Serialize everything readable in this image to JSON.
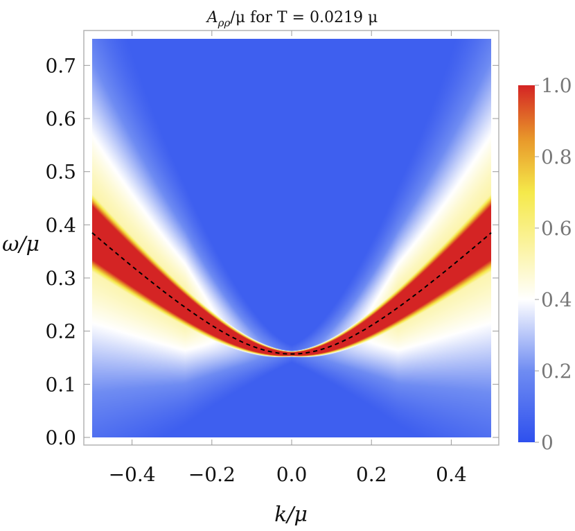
{
  "chart_data": {
    "type": "heatmap",
    "title": "A_ρρ/μ for T = 0.0219 μ",
    "title_parts": {
      "symbol": "A",
      "subscript": "ρρ",
      "rest": "/μ for T = 0.0219 μ"
    },
    "xlabel": "k/μ",
    "ylabel": "ω/μ",
    "xlim": [
      -0.5,
      0.5
    ],
    "ylim": [
      0.0,
      0.75
    ],
    "xticks": [
      -0.4,
      -0.2,
      0.0,
      0.2,
      0.4
    ],
    "xtick_labels": [
      "−0.4",
      "−0.2",
      "0.0",
      "0.2",
      "0.4"
    ],
    "yticks": [
      0.0,
      0.1,
      0.2,
      0.3,
      0.4,
      0.5,
      0.6,
      0.7
    ],
    "ytick_labels": [
      "0.0",
      "0.1",
      "0.2",
      "0.3",
      "0.4",
      "0.5",
      "0.6",
      "0.7"
    ],
    "colorbar": {
      "range": [
        0,
        1.0
      ],
      "ticks": [
        0,
        0.2,
        0.4,
        0.6,
        0.8,
        1.0
      ],
      "tick_labels": [
        "0",
        "0.2",
        "0.4",
        "0.6",
        "0.8",
        "1.0"
      ],
      "colors": [
        "#2e50ee",
        "#6f8cf2",
        "#ffffff",
        "#fbf3a0",
        "#f5e94a",
        "#e8972a",
        "#d42424"
      ]
    },
    "dispersion_curve": {
      "style": "dashed",
      "color": "#000000",
      "gap": 0.157,
      "points": [
        {
          "k": -0.5,
          "omega": 0.385
        },
        {
          "k": -0.4,
          "omega": 0.327
        },
        {
          "k": -0.3,
          "omega": 0.271
        },
        {
          "k": -0.2,
          "omega": 0.219
        },
        {
          "k": -0.1,
          "omega": 0.177
        },
        {
          "k": 0.0,
          "omega": 0.157
        },
        {
          "k": 0.1,
          "omega": 0.177
        },
        {
          "k": 0.2,
          "omega": 0.219
        },
        {
          "k": 0.3,
          "omega": 0.271
        },
        {
          "k": 0.4,
          "omega": 0.327
        },
        {
          "k": 0.5,
          "omega": 0.385
        }
      ]
    },
    "band_halfwidth_at_edge": 0.06,
    "background_value": 0.05,
    "grid": false
  }
}
